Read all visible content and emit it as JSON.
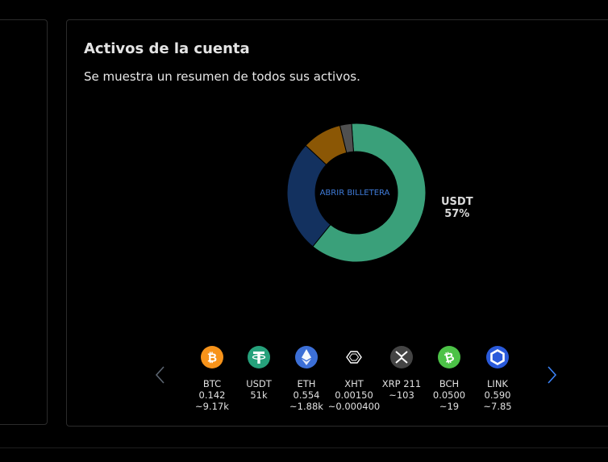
{
  "card": {
    "title": "Activos de la cuenta",
    "subtitle": "Se muestra un resumen de todos sus activos."
  },
  "donut": {
    "center_link": "ABRIR BILLETERA",
    "highlight_label": "USDT",
    "highlight_percent": "57%",
    "segments": [
      {
        "name": "USDT",
        "percent": 57,
        "color": "#3aa07a"
      },
      {
        "name": "segment-2",
        "percent": 24,
        "color": "#13315f"
      },
      {
        "name": "segment-3",
        "percent": 8.5,
        "color": "#8b5705"
      },
      {
        "name": "segment-4",
        "percent": 2.5,
        "color": "#505050"
      }
    ]
  },
  "assets": [
    {
      "symbol": "BTC",
      "amount": "0.142",
      "value": "~9.17k",
      "icon": "bitcoin-icon",
      "color": "#f7931a"
    },
    {
      "symbol": "USDT",
      "amount": "51k",
      "value": "",
      "icon": "tether-icon",
      "color": "#26a17b"
    },
    {
      "symbol": "ETH",
      "amount": "0.554",
      "value": "~1.88k",
      "icon": "ethereum-icon",
      "color": "#3c6fd6"
    },
    {
      "symbol": "XHT",
      "amount": "0.00150",
      "value": "~0.000400",
      "icon": "hollaex-icon",
      "color": "#000000"
    },
    {
      "symbol": "XRP 211",
      "amount": "~103",
      "value": "",
      "icon": "xrp-icon",
      "color": "#444444"
    },
    {
      "symbol": "BCH",
      "amount": "0.0500",
      "value": "~19",
      "icon": "bitcoin-cash-icon",
      "color": "#4cc247"
    },
    {
      "symbol": "LINK",
      "amount": "0.590",
      "value": "~7.85",
      "icon": "chainlink-icon",
      "color": "#2a5ada"
    }
  ],
  "nav": {
    "prev_icon": "chevron-left-icon",
    "next_icon": "chevron-right-icon",
    "prev_color": "#5b6470",
    "next_color": "#3b82f6"
  }
}
